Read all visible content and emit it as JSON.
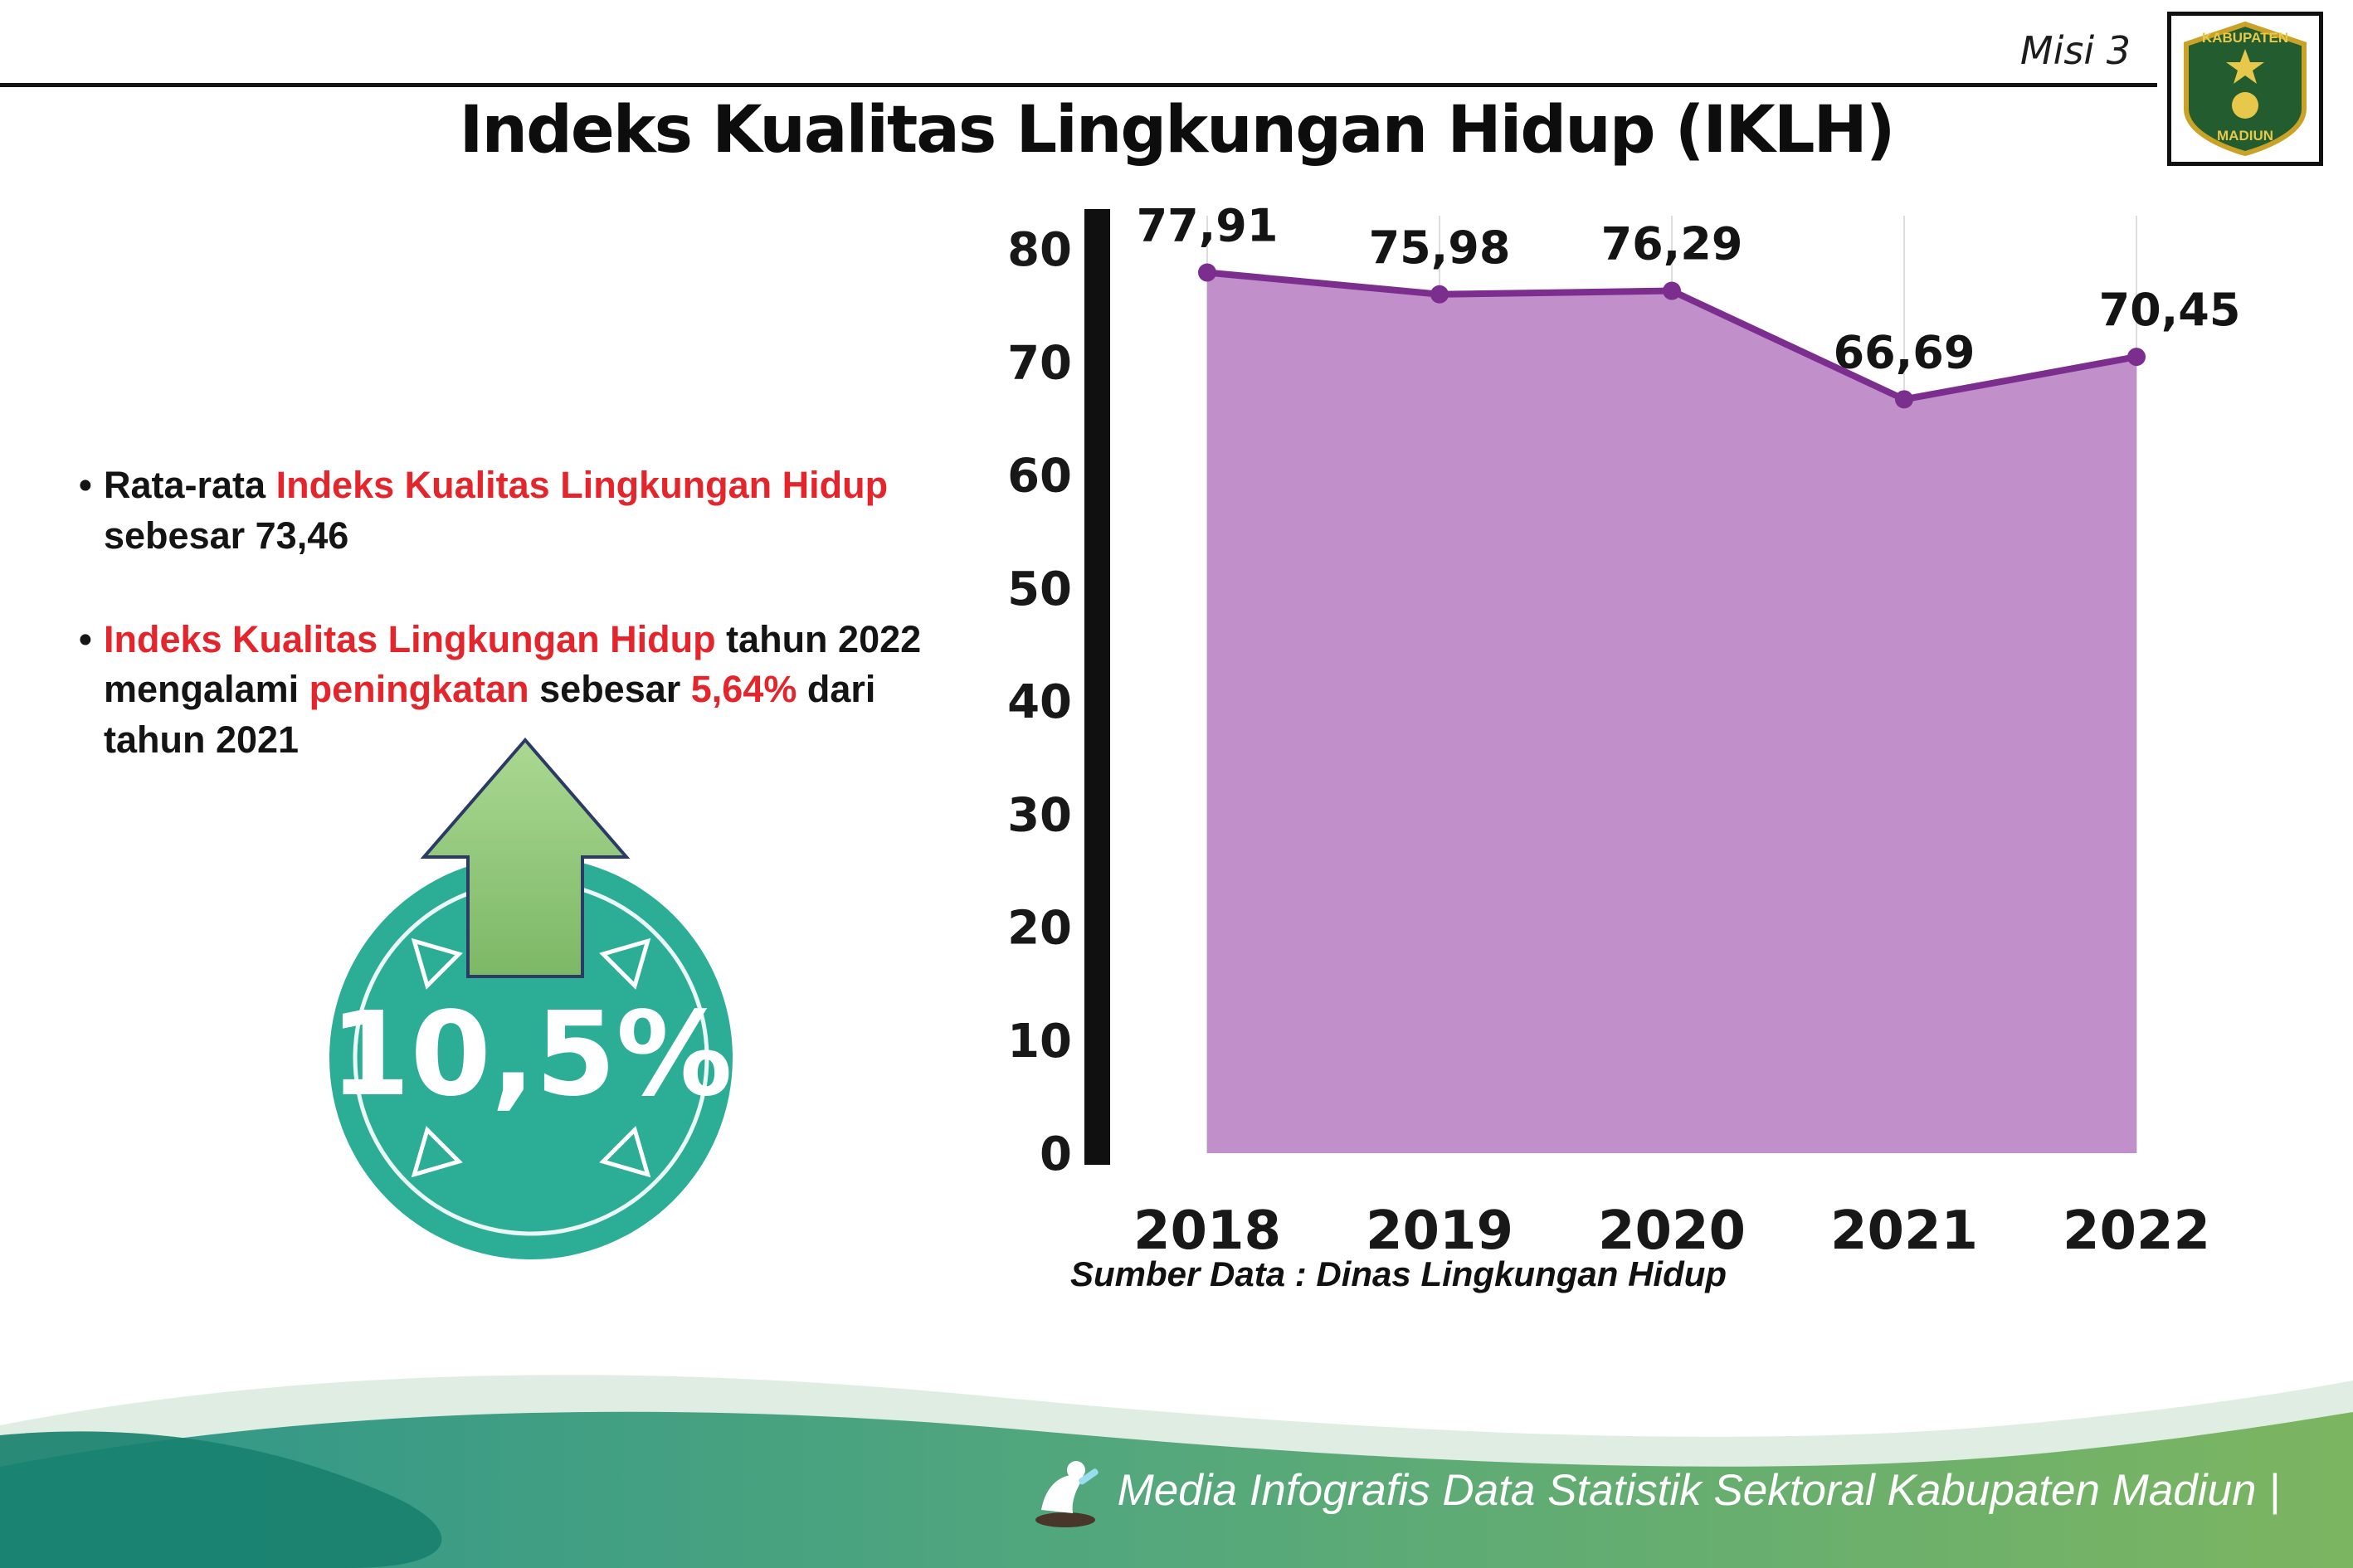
{
  "colors": {
    "accent_red": "#e4252b",
    "title_black": "#101010",
    "badge_teal": "#2bae95",
    "arrow_green": "#8fc47a",
    "chart_area": "#c18fca",
    "chart_line": "#7b2e8e",
    "footer_teal": "#2e968a",
    "footer_green": "#7cb561"
  },
  "header": {
    "misi_label": "Misi 3",
    "title": "Indeks Kualitas Lingkungan Hidup (IKLH)",
    "logo_top_text": "KABUPATEN",
    "logo_bottom_text": "MADIUN"
  },
  "bullets": {
    "bullet_char": "•",
    "b1": {
      "seg0": "Rata-rata ",
      "seg1": "Indeks Kualitas Lingkungan Hidup",
      "seg2": "sebesar 73,46"
    },
    "b2": {
      "seg0": "Indeks Kualitas Lingkungan Hidup",
      "seg1": " tahun 2022",
      "seg2": "mengalami ",
      "seg3": "peningkatan",
      "seg4": " sebesar ",
      "seg5": "5,64%",
      "seg6": " dari",
      "seg7": "tahun 2021"
    }
  },
  "badge": {
    "value": "10,5%"
  },
  "chart_data": {
    "type": "area",
    "title": "",
    "xlabel": "",
    "ylabel": "",
    "categories": [
      "2018",
      "2019",
      "2020",
      "2021",
      "2022"
    ],
    "values": [
      77.91,
      75.98,
      76.29,
      66.69,
      70.45
    ],
    "value_labels": [
      "77,91",
      "75,98",
      "76,29",
      "66,69",
      "70,45"
    ],
    "ylim": [
      0,
      80
    ],
    "yticks": [
      0,
      10,
      20,
      30,
      40,
      50,
      60,
      70,
      80
    ],
    "grid": "vertical-light",
    "legend": "none",
    "area_color": "#c18fca",
    "line_color": "#7b2e8e",
    "source_note": "Sumber Data : Dinas Lingkungan Hidup"
  },
  "footer": {
    "text": "Media Infografis Data Statistik Sektoral Kabupaten Madiun |"
  }
}
